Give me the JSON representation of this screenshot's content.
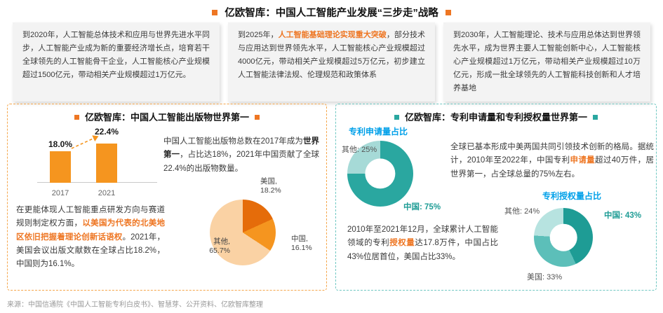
{
  "theme": {
    "orange": "#F5951F",
    "orange_dark": "#E56C0A",
    "orange_light": "#FAD2A4",
    "orange_highlight": "#EE7623",
    "teal": "#2AA7A0",
    "teal_light": "#A6DAD7",
    "blue": "#00A0E9"
  },
  "header": {
    "title": "亿欧智库：中国人工智能产业发展“三步走”战略"
  },
  "strategy": {
    "boxes": [
      {
        "text": "到2020年，人工智能总体技术和应用与世界先进水平同步，人工智能产业成为新的重要经济增长点，培育若干全球领先的人工智能骨干企业，人工智能核心产业规模超过1500亿元，带动相关产业规模超过1万亿元。"
      },
      {
        "pre": "到2025年，",
        "highlight": "人工智能基础理论实现重大突破",
        "post": "，部分技术与应用达到世界领先水平，人工智能核心产业规模超过4000亿元，带动相关产业规模超过5万亿元，初步建立人工智能法律法规、伦理规范和政策体系"
      },
      {
        "text": "到2030年，人工智能理论、技术与应用总体达到世界领先水平，成为世界主要人工智能创新中心，人工智能核心产业规模超过1万亿元，带动相关产业规模超过10万亿元，形成一批全球领先的人工智能科技创新和人才培养基地"
      }
    ]
  },
  "left_panel": {
    "title": "亿欧智库：中国人工智能出版物世界第一",
    "para1": {
      "pre": "中国人工智能出版物总数在2017年成为",
      "bold": "世界第一",
      "post": "，占比达18%，2021年中国贡献了全球22.4%的出版物数量。"
    },
    "para2": {
      "pre": "在更能体现人工智能重点研发方向与赛道规则制定权方面，",
      "highlight": "以美国为代表的北美地区依旧把握着理论创新话语权",
      "post": "。2021年，美国会议出版文献数在全球占比18.2%，中国则为16.1%。"
    }
  },
  "right_panel": {
    "title": "亿欧智库：专利申请量和专利授权量世界第一",
    "para1": {
      "pre": "全球已基本形成中美两国共同引领技术创新的格局。据统计，2010年至2022年，中国专利",
      "highlight": "申请量",
      "post": "超过40万件，居世界第一，占全球总量的75%左右。"
    },
    "para2": {
      "pre": "2010年至2021年12月，全球累计人工智能领域的专利",
      "highlight": "授权量",
      "post": "达17.8万件，中国占比43%位居首位，美国占比33%。"
    }
  },
  "footer": {
    "source": "来源：中国信通院《中国人工智能专利白皮书》、智慧芽、公开资料、亿欧智库整理"
  },
  "chart_data": [
    {
      "id": "china-ai-publications-share",
      "type": "bar",
      "categories": [
        "2017",
        "2021"
      ],
      "values": [
        18.0,
        22.4
      ],
      "value_labels": [
        "18.0%",
        "22.4%"
      ],
      "bar_color": "#F5951F",
      "ylabel": "",
      "xlabel": ""
    },
    {
      "id": "conference-publications-share-2021",
      "type": "pie",
      "slices": [
        {
          "name": "美国",
          "value": 18.2,
          "label": "美国,",
          "pct_label": "18.2%",
          "color": "#E56C0A"
        },
        {
          "name": "中国",
          "value": 16.1,
          "label": "中国,",
          "pct_label": "16.1%",
          "color": "#F5951F"
        },
        {
          "name": "其他",
          "value": 65.7,
          "label": "其他,",
          "pct_label": "65.7%",
          "color": "#FAD2A4"
        }
      ]
    },
    {
      "id": "patent-applications-share",
      "type": "donut",
      "title": "专利申请量占比",
      "slices": [
        {
          "name": "中国",
          "value": 75,
          "label": "中国: 75%",
          "color": "#2AA7A0"
        },
        {
          "name": "其他",
          "value": 25,
          "label": "其他: 25%",
          "color": "#A6DAD7"
        }
      ]
    },
    {
      "id": "patent-grants-share",
      "type": "donut",
      "title": "专利授权量占比",
      "slices": [
        {
          "name": "中国",
          "value": 43,
          "label": "中国: 43%",
          "color": "#1E9C95"
        },
        {
          "name": "美国",
          "value": 33,
          "label": "美国: 33%",
          "color": "#5CBFB9"
        },
        {
          "name": "其他",
          "value": 24,
          "label": "其他: 24%",
          "color": "#B7E3E0"
        }
      ]
    }
  ]
}
